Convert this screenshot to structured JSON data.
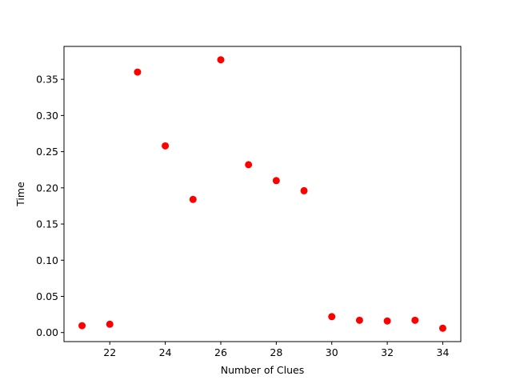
{
  "chart_data": {
    "type": "scatter",
    "xlabel": "Number of Clues",
    "ylabel": "Time",
    "xlim": [
      20.35,
      34.65
    ],
    "ylim": [
      -0.0125,
      0.3955
    ],
    "x_ticks": [
      22,
      24,
      26,
      28,
      30,
      32,
      34
    ],
    "x_tick_labels": [
      "22",
      "24",
      "26",
      "28",
      "30",
      "32",
      "34"
    ],
    "y_ticks": [
      0.0,
      0.05,
      0.1,
      0.15,
      0.2,
      0.25,
      0.3,
      0.35
    ],
    "y_tick_labels": [
      "0.00",
      "0.05",
      "0.10",
      "0.15",
      "0.20",
      "0.25",
      "0.30",
      "0.35"
    ],
    "grid": false,
    "series": [
      {
        "color": "#ff0000",
        "x": [
          21,
          22,
          23,
          24,
          25,
          26,
          27,
          28,
          29,
          30,
          31,
          32,
          33,
          34
        ],
        "y": [
          0.0095,
          0.0115,
          0.36,
          0.258,
          0.184,
          0.377,
          0.232,
          0.21,
          0.196,
          0.022,
          0.017,
          0.016,
          0.017,
          0.006
        ]
      }
    ]
  }
}
